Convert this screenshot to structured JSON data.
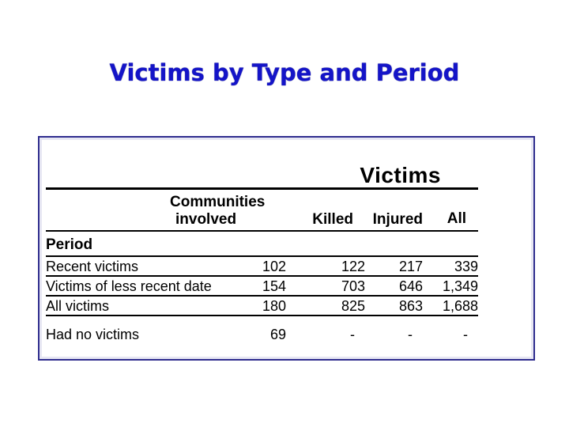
{
  "slide_title": "Victims by Type and Period",
  "table": {
    "spanner_heading": "Victims",
    "group_header_line1": "Communities",
    "group_header_line2": "involved",
    "col_killed": "Killed",
    "col_injured": "Injured",
    "col_all": "All",
    "stub_header": "Period",
    "rows": [
      {
        "label": "Recent victims",
        "values": [
          "102",
          "122",
          "217",
          "339"
        ]
      },
      {
        "label": "Victims of less recent date",
        "values": [
          "154",
          "703",
          "646",
          "1,349"
        ]
      },
      {
        "label": "All victims",
        "values": [
          "180",
          "825",
          "863",
          "1,688"
        ]
      },
      {
        "label": "Had no victims",
        "values": [
          "69",
          "-",
          "-",
          "-"
        ]
      }
    ]
  },
  "colors": {
    "title_blue": "#1414c8",
    "frame_navy": "#2f2d8e",
    "frame_inner_strip": "#e7e7f3",
    "table_text": "#000000",
    "background": "#ffffff"
  }
}
